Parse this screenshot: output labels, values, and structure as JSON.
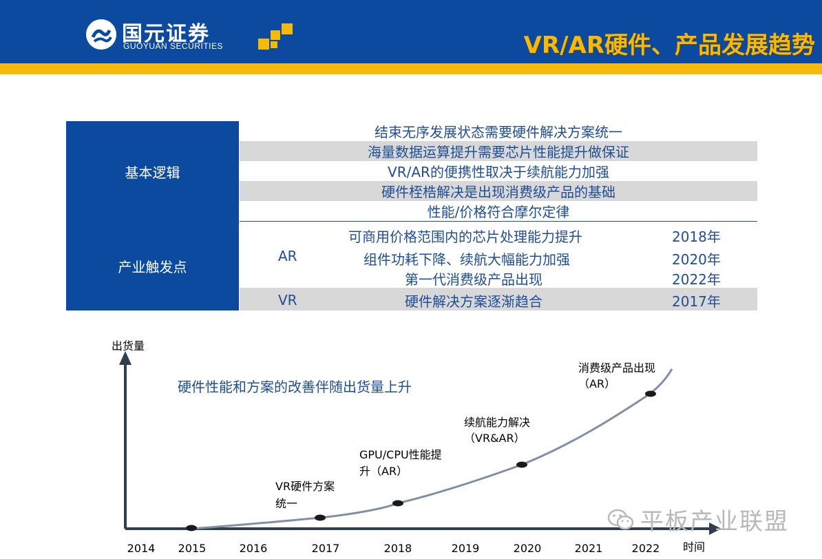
{
  "header": {
    "company_cn": "国元证券",
    "company_en": "GUOYUAN SECURITIES",
    "title": "VR/AR硬件、产品发展趋势"
  },
  "table": {
    "logic_label": "基本逻辑",
    "logic_rows": [
      "结束无序发展状态需要硬件解决方案统一",
      "海量数据运算提升需要芯片性能提升做保证",
      "VR/AR的便携性取决于续航能力加强",
      "硬件桎梏解决是出现消费级产品的基础",
      "性能/价格符合摩尔定律"
    ],
    "trigger_label": "产业触发点",
    "ar_label": "AR",
    "ar_rows": [
      {
        "text": "可商用价格范围内的芯片处理能力提升",
        "year": "2018年"
      },
      {
        "text": "组件功耗下降、续航大幅能力加强",
        "year": "2020年"
      },
      {
        "text": "第一代消费级产品出现",
        "year": "2022年"
      }
    ],
    "vr_label": "VR",
    "vr_row": {
      "text": "硬件解决方案逐渐趋合",
      "year": "2017年"
    }
  },
  "chart_data": {
    "type": "line",
    "title": "硬件性能和方案的改善伴随出货量上升",
    "ylabel": "出货量",
    "xlabel": "时间",
    "categories": [
      "2014",
      "2015",
      "2016",
      "2017",
      "2018",
      "2019",
      "2020",
      "2021",
      "2022"
    ],
    "milestones": [
      {
        "year": "2015",
        "label": ""
      },
      {
        "year": "2017",
        "label": "VR硬件方案统一"
      },
      {
        "year": "2018",
        "label": "GPU/CPU性能提升（AR）"
      },
      {
        "year": "2020",
        "label": "续航能力解决（VR&AR）"
      },
      {
        "year": "2022",
        "label": "消费级产品出现（AR）"
      }
    ],
    "annotations": {
      "vr_line1": "VR硬件方案",
      "vr_line2": "统一",
      "gpu_line1": "GPU/CPU性能提",
      "gpu_line2": "升（AR）",
      "bat_line1": "续航能力解决",
      "bat_line2": "（VR&AR）",
      "cons_line1": "消费级产品出现",
      "cons_line2": "（AR）"
    }
  },
  "watermark": "平板产业联盟",
  "colors": {
    "brand_blue": "#0c4aa0",
    "brand_yellow": "#f6b80a",
    "text_blue": "#1f4e96",
    "axis": "#2f3e50",
    "curve": "#7f8fa6"
  }
}
